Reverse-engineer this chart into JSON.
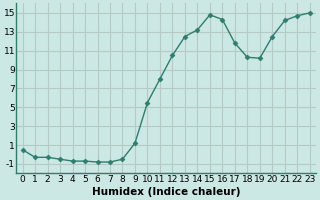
{
  "x": [
    0,
    1,
    2,
    3,
    4,
    5,
    6,
    7,
    8,
    9,
    10,
    11,
    12,
    13,
    14,
    15,
    16,
    17,
    18,
    19,
    20,
    21,
    22,
    23
  ],
  "y": [
    0.5,
    -0.3,
    -0.3,
    -0.5,
    -0.7,
    -0.7,
    -0.8,
    -0.8,
    -0.5,
    1.2,
    5.5,
    8.0,
    10.5,
    12.5,
    13.2,
    14.8,
    14.3,
    11.8,
    10.3,
    10.2,
    12.5,
    14.2,
    14.7,
    15.0
  ],
  "xlabel": "Humidex (Indice chaleur)",
  "xlim": [
    -0.5,
    23.5
  ],
  "ylim": [
    -2,
    16
  ],
  "yticks": [
    -1,
    1,
    3,
    5,
    7,
    9,
    11,
    13,
    15
  ],
  "xticks": [
    0,
    1,
    2,
    3,
    4,
    5,
    6,
    7,
    8,
    9,
    10,
    11,
    12,
    13,
    14,
    15,
    16,
    17,
    18,
    19,
    20,
    21,
    22,
    23
  ],
  "line_color": "#2e7d6e",
  "marker": "D",
  "marker_size": 2.5,
  "bg_color": "#cce8e4",
  "grid_color": "#b8c8c4",
  "spine_color": "#2e7d6e",
  "tick_label_fontsize": 6.5,
  "xlabel_fontsize": 7.5,
  "linewidth": 1.0
}
